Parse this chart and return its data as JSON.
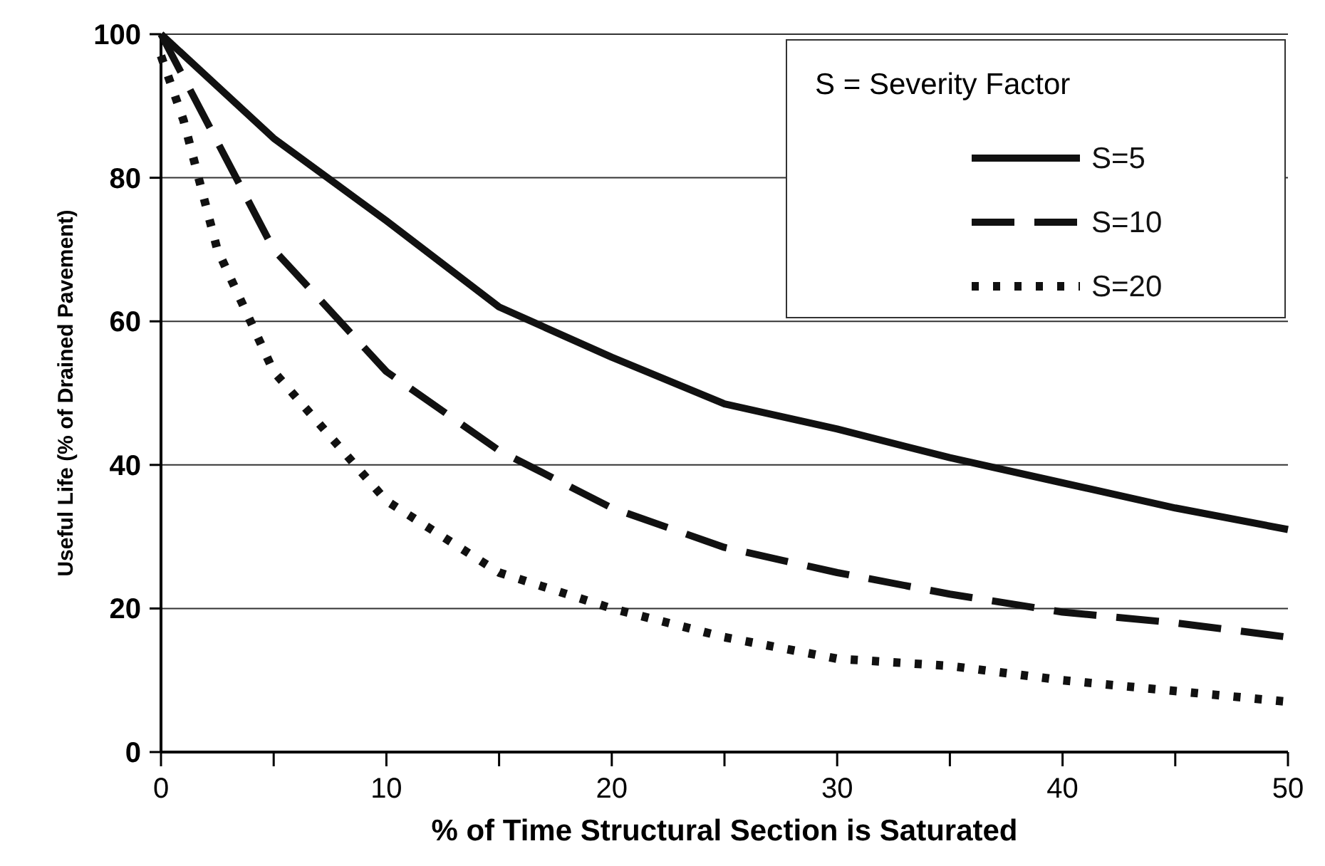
{
  "chart_data": {
    "type": "line",
    "xlabel": "% of Time Structural Section is Saturated",
    "ylabel": "Useful Life (% of Drained Pavement)",
    "legend_title": "S = Severity Factor",
    "legend": "top right",
    "grid": "y",
    "xlim": [
      0,
      50
    ],
    "ylim": [
      0,
      100
    ],
    "xticks": [
      0,
      {
        "value": 5,
        "label": null
      },
      10,
      {
        "value": 15,
        "label": null
      },
      20,
      {
        "value": 25,
        "label": null
      },
      30,
      {
        "value": 35,
        "label": null
      },
      40,
      {
        "value": 45,
        "label": null
      },
      50
    ],
    "yticks": [
      0,
      20,
      40,
      60,
      80,
      100
    ],
    "x": [
      0,
      5,
      10,
      15,
      20,
      25,
      30,
      35,
      40,
      45,
      50
    ],
    "series": [
      {
        "name": "S=5",
        "color": "#111111",
        "line_style": "solid",
        "values": [
          100,
          85.5,
          74,
          62,
          55,
          48.5,
          45,
          41,
          37.5,
          34,
          31
        ]
      },
      {
        "name": "S=10",
        "color": "#111111",
        "line_style": "dashed",
        "x": [
          0,
          2.5,
          5,
          10,
          15,
          20,
          25,
          30,
          35,
          40,
          45,
          50
        ],
        "values": [
          100,
          85,
          70,
          53,
          42,
          34,
          28.5,
          25,
          22,
          19.5,
          18,
          16
        ]
      },
      {
        "name": "S=20",
        "color": "#111111",
        "line_style": "dotted",
        "x": [
          0,
          1,
          2.5,
          5,
          10,
          15,
          20,
          25,
          30,
          35,
          40,
          45,
          50
        ],
        "values": [
          97,
          88,
          70,
          53,
          35,
          25,
          20,
          16,
          13,
          12,
          10,
          8.5,
          7
        ]
      }
    ]
  }
}
